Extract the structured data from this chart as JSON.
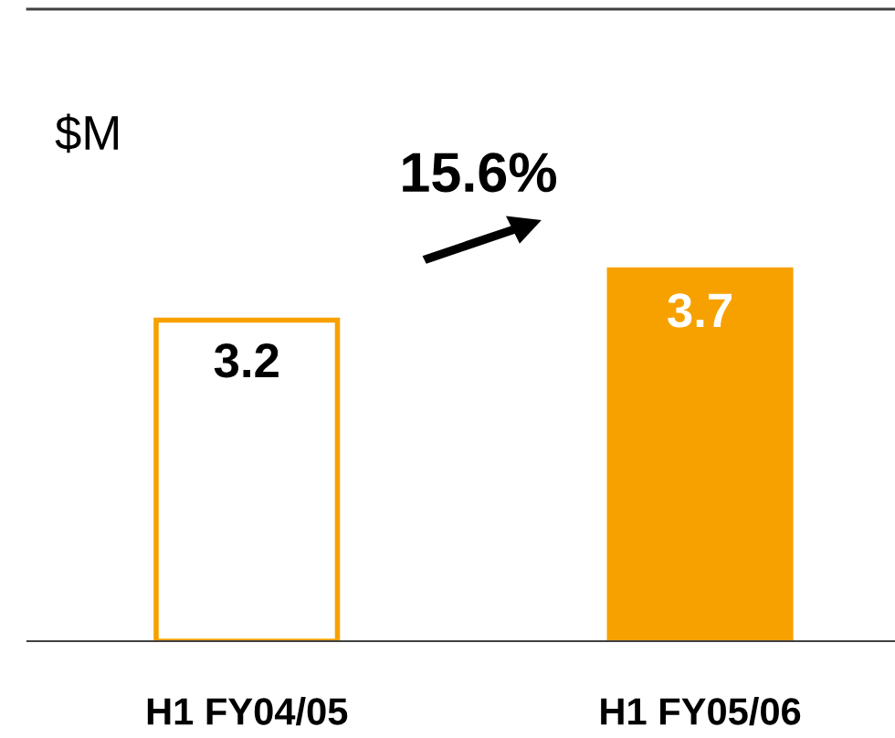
{
  "chart_data": {
    "type": "bar",
    "ylabel": "$M",
    "categories": [
      "H1 FY04/05",
      "H1 FY05/06"
    ],
    "values": [
      3.2,
      3.7
    ],
    "colors": [
      "#ffffff",
      "#f7a100"
    ],
    "color": "#f7a100",
    "ylim": [
      0,
      6.3
    ],
    "tick_labels": "x",
    "data_labels": true,
    "grid": false,
    "legend": false,
    "annotations": [
      "15.6%"
    ]
  }
}
